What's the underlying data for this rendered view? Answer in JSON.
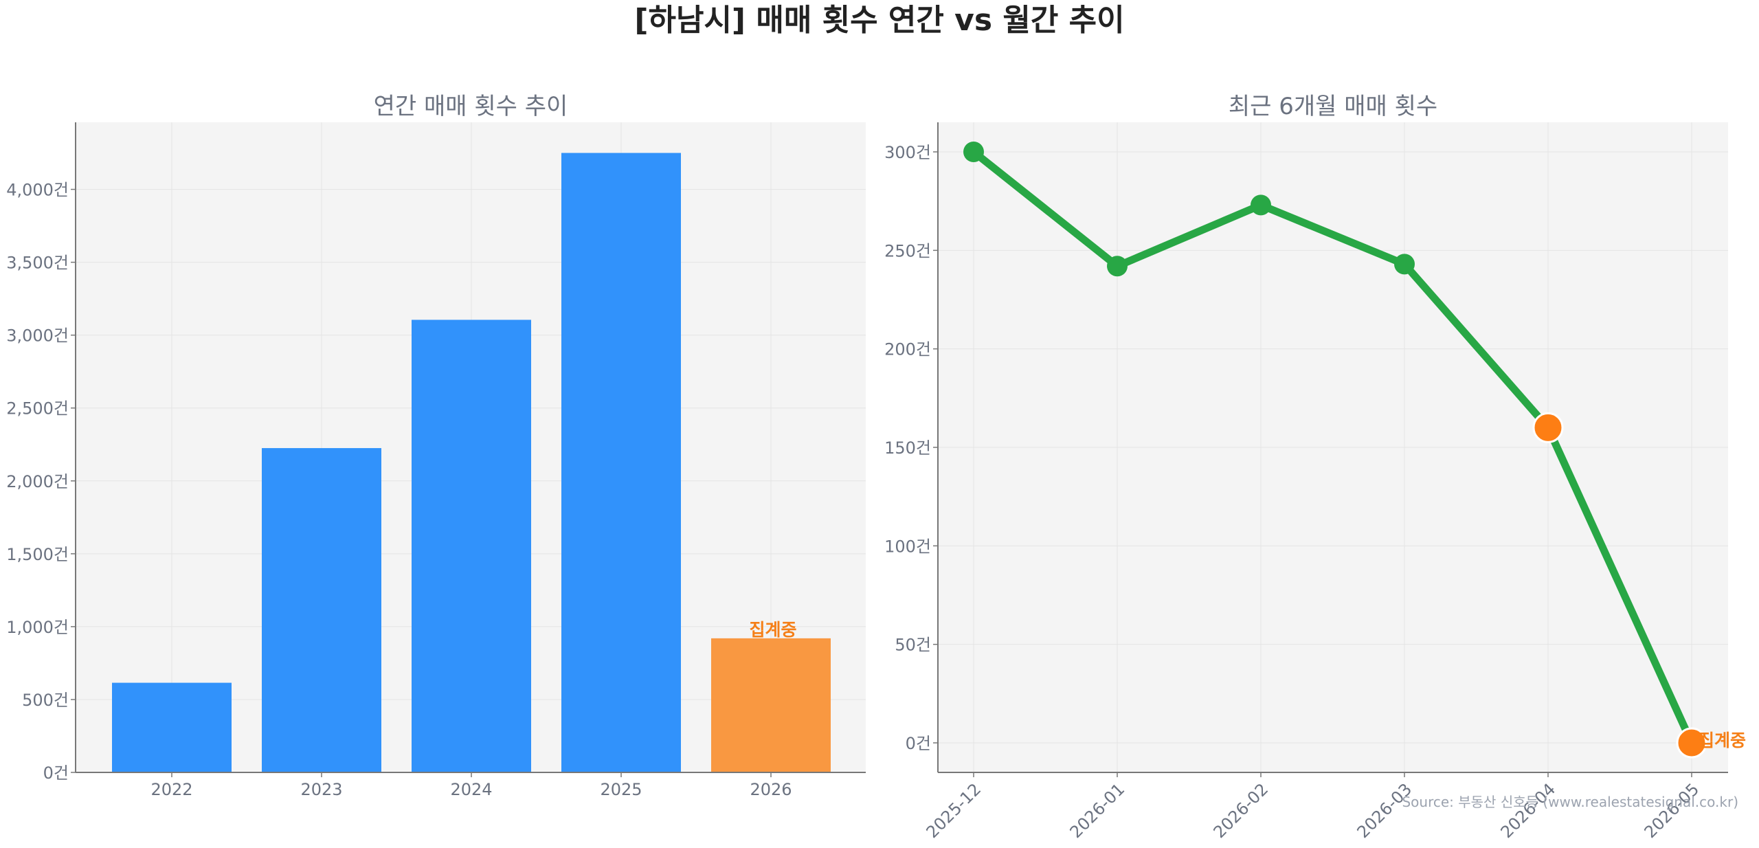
{
  "figure": {
    "title": "[하남시] 매매 횟수 연간 vs 월간 추이",
    "source": "Source: 부동산 신호등 (www.realestatesignal.co.kr)"
  },
  "colors": {
    "bar": "#3192fb",
    "bar_partial": "#f99841",
    "line": "#28a745",
    "marker_partial": "#fd7e14",
    "note": "#f57f17",
    "plot_bg": "#f4f4f4",
    "grid": "#e4e4e4",
    "axis": "#777777"
  },
  "chart_data": [
    {
      "type": "bar",
      "title": "연간 매매 횟수 추이",
      "xlabel": "",
      "ylabel": "",
      "categories": [
        "2022",
        "2023",
        "2024",
        "2025",
        "2026"
      ],
      "values": [
        615,
        2225,
        3105,
        4250,
        920
      ],
      "partial_index": 4,
      "partial_label": "집계중",
      "yticks": [
        0,
        500,
        1000,
        1500,
        2000,
        2500,
        3000,
        3500,
        4000
      ],
      "ytick_labels": [
        "0건",
        "500건",
        "1,000건",
        "1,500건",
        "2,000건",
        "2,500건",
        "3,000건",
        "3,500건",
        "4,000건"
      ],
      "ylim": [
        0,
        4460
      ],
      "grid": true
    },
    {
      "type": "line",
      "title": "최근 6개월 매매 횟수",
      "xlabel": "",
      "ylabel": "",
      "x": [
        "2025-12",
        "2026-01",
        "2026-02",
        "2026-03",
        "2026-04",
        "2026-05"
      ],
      "values": [
        300,
        242,
        273,
        243,
        160,
        0
      ],
      "partial_indices": [
        4,
        5
      ],
      "partial_label": "집계중",
      "yticks": [
        0,
        50,
        100,
        150,
        200,
        250,
        300
      ],
      "ytick_labels": [
        "0건",
        "50건",
        "100건",
        "150건",
        "200건",
        "250건",
        "300건"
      ],
      "ylim": [
        -15,
        315
      ],
      "grid": true
    }
  ]
}
